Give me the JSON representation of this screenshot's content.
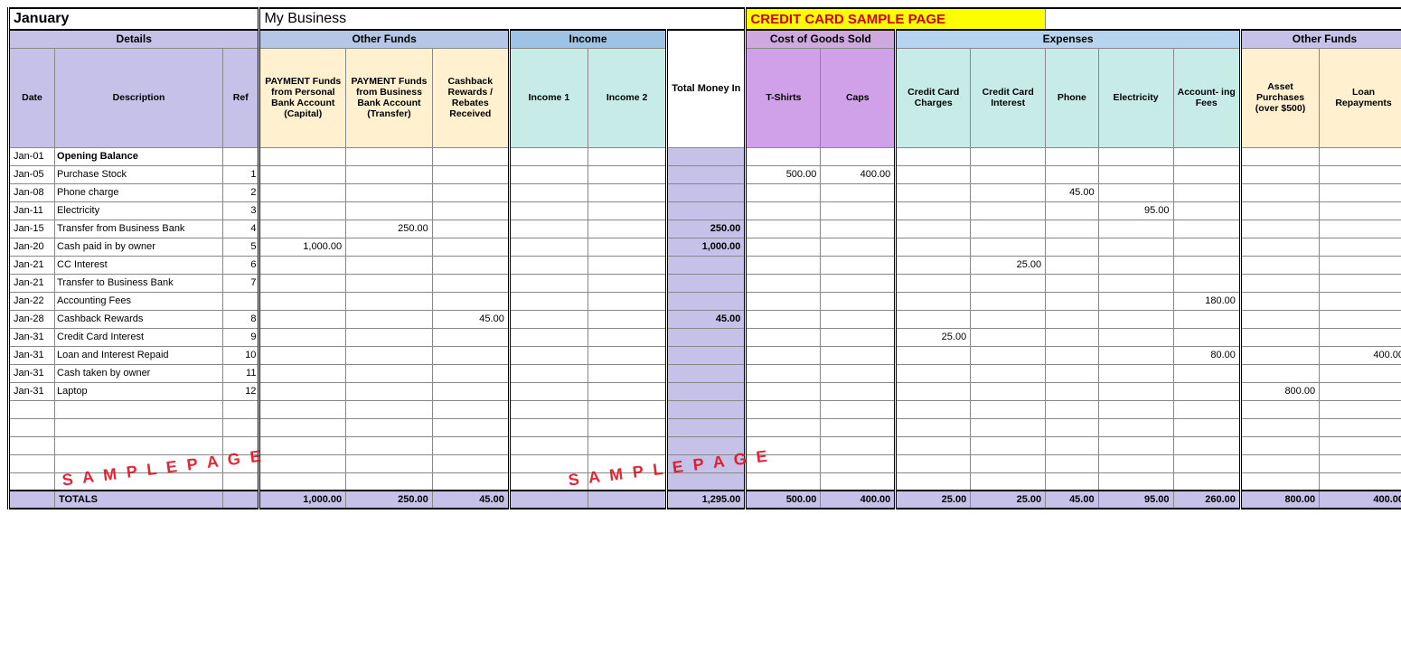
{
  "title": {
    "month": "January",
    "business": "My Business",
    "page": "CREDIT CARD SAMPLE PAGE"
  },
  "groups": {
    "details": "Details",
    "otherFunds": "Other Funds",
    "income": "Income",
    "cogs": "Cost of Goods Sold",
    "expenses": "Expenses",
    "otherFunds2": "Other Funds"
  },
  "cols": {
    "date": "Date",
    "desc": "Description",
    "ref": "Ref",
    "payPersonal": "PAYMENT Funds from Personal Bank Account (Capital)",
    "payBusiness": "PAYMENT Funds from Business Bank Account (Transfer)",
    "cashback": "Cashback Rewards / Rebates Received",
    "income1": "Income 1",
    "income2": "Income 2",
    "totalIn": "Total Money In",
    "tshirts": "T-Shirts",
    "caps": "Caps",
    "ccCharges": "Credit Card Charges",
    "ccInterest": "Credit Card Interest",
    "phone": "Phone",
    "electricity": "Electricity",
    "acctFees": "Account-\ning Fees",
    "asset": "Asset Purchases (over $500)",
    "loan": "Loan Repayments"
  },
  "rows": [
    {
      "date": "Jan-01",
      "desc": "Opening Balance",
      "ref": "",
      "open": true
    },
    {
      "date": "Jan-05",
      "desc": "Purchase Stock",
      "ref": "1",
      "tshirts": "500.00",
      "caps": "400.00"
    },
    {
      "date": "Jan-08",
      "desc": "Phone charge",
      "ref": "2",
      "phone": "45.00"
    },
    {
      "date": "Jan-11",
      "desc": "Electricity",
      "ref": "3",
      "electricity": "95.00"
    },
    {
      "date": "Jan-15",
      "desc": "Transfer from Business Bank",
      "ref": "4",
      "payBusiness": "250.00",
      "totalIn": "250.00"
    },
    {
      "date": "Jan-20",
      "desc": "Cash paid in by owner",
      "ref": "5",
      "payPersonal": "1,000.00",
      "totalIn": "1,000.00"
    },
    {
      "date": "Jan-21",
      "desc": "CC Interest",
      "ref": "6",
      "ccInterest": "25.00"
    },
    {
      "date": "Jan-21",
      "desc": "Transfer to Business Bank",
      "ref": "7"
    },
    {
      "date": "Jan-22",
      "desc": "Accounting Fees",
      "ref": "",
      "acctFees": "180.00"
    },
    {
      "date": "Jan-28",
      "desc": "Cashback Rewards",
      "ref": "8",
      "cashback": "45.00",
      "totalIn": "45.00"
    },
    {
      "date": "Jan-31",
      "desc": "Credit Card Interest",
      "ref": "9",
      "ccCharges": "25.00"
    },
    {
      "date": "Jan-31",
      "desc": "Loan and Interest Repaid",
      "ref": "10",
      "acctFees": "80.00",
      "loan": "400.00"
    },
    {
      "date": "Jan-31",
      "desc": "Cash taken by owner",
      "ref": "11"
    },
    {
      "date": "Jan-31",
      "desc": "Laptop",
      "ref": "12",
      "asset": "800.00"
    },
    {
      "date": "",
      "desc": "",
      "ref": ""
    },
    {
      "date": "",
      "desc": "",
      "ref": ""
    },
    {
      "date": "",
      "desc": "",
      "ref": ""
    },
    {
      "date": "",
      "desc": "",
      "ref": ""
    }
  ],
  "spacer": {
    "date": "",
    "desc": "",
    "ref": ""
  },
  "totals": {
    "label": "TOTALS",
    "payPersonal": "1,000.00",
    "payBusiness": "250.00",
    "cashback": "45.00",
    "income1": "",
    "income2": "",
    "totalIn": "1,295.00",
    "tshirts": "500.00",
    "caps": "400.00",
    "ccCharges": "25.00",
    "ccInterest": "25.00",
    "phone": "45.00",
    "electricity": "95.00",
    "acctFees": "260.00",
    "asset": "800.00",
    "loan": "400.00"
  },
  "watermark": "S A M P L E   P A G E",
  "colors": {
    "lavender": "#c5c1e8",
    "cream": "#fff0d0",
    "teal": "#c7ece8",
    "pink": "#d0a0e8",
    "blueHeader": "#9dc3e6",
    "highlight": "#ffff00",
    "red": "#d00000"
  }
}
